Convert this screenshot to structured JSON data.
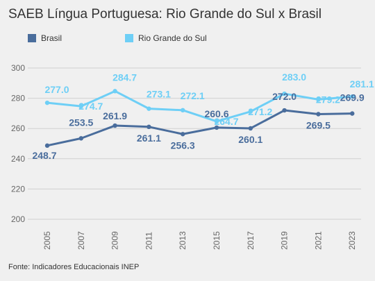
{
  "page": {
    "title": "SAEB Língua Portuguesa: Rio Grande do Sul x Brasil",
    "source": "Fonte: Indicadores Educacionais INEP"
  },
  "chart_data": {
    "type": "line",
    "x": [
      "2005",
      "2007",
      "2009",
      "2011",
      "2013",
      "2015",
      "2017",
      "2019",
      "2021",
      "2023"
    ],
    "ylim": [
      200,
      300
    ],
    "yticks": [
      200,
      220,
      240,
      260,
      280,
      300
    ],
    "grid": true,
    "legend_position": "top-left",
    "series": [
      {
        "name": "Brasil",
        "color": "#4a6d9c",
        "values": [
          248.7,
          253.5,
          261.9,
          261.1,
          256.3,
          260.6,
          260.1,
          272.0,
          269.5,
          269.9
        ],
        "labels": [
          "248.7",
          "253.5",
          "261.9",
          "261.1",
          "256.3",
          "260.6",
          "260.1",
          "272.0",
          "269.5",
          "269.9"
        ]
      },
      {
        "name": "Rio Grande do Sul",
        "color": "#6ecff6",
        "values": [
          277.0,
          274.7,
          284.7,
          273.1,
          272.1,
          264.7,
          271.2,
          283.0,
          279.2,
          281.1
        ],
        "labels": [
          "277.0",
          "274.7",
          "284.7",
          "273.1",
          "272.1",
          "264.7",
          "271.2",
          "283.0",
          "279.2",
          "281.1"
        ]
      }
    ]
  }
}
